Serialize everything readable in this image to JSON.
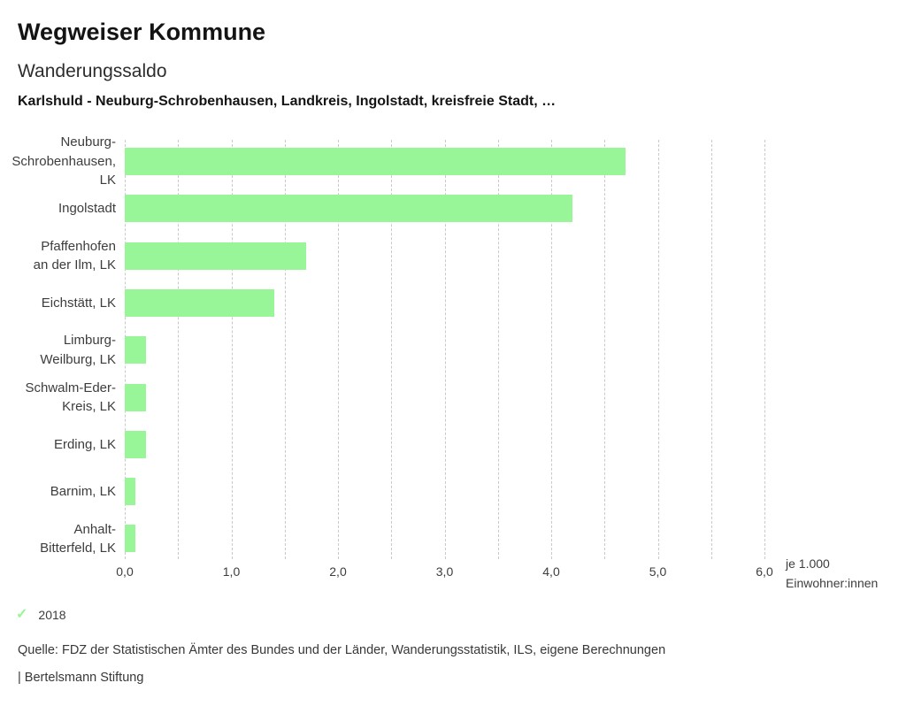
{
  "header": {
    "title": "Wegweiser Kommune",
    "subtitle": "Wanderungssaldo",
    "context": "Karlshuld - Neuburg-Schrobenhausen, Landkreis, Ingolstadt, kreisfreie Stadt, …"
  },
  "chart_data": {
    "type": "bar",
    "orientation": "horizontal",
    "title": "Wanderungssaldo",
    "xlabel": "je 1.000 Einwohner:innen",
    "unit_label_lines": [
      "je 1.000",
      "Einwohner:innen"
    ],
    "categories": [
      "Neuburg-Schrobenhausen, LK",
      "Ingolstadt",
      "Pfaffenhofen an der Ilm, LK",
      "Eichstätt, LK",
      "Limburg-Weilburg, LK",
      "Schwalm-Eder-Kreis, LK",
      "Erding, LK",
      "Barnim, LK",
      "Anhalt-Bitterfeld, LK"
    ],
    "category_label_lines": [
      [
        "Neuburg-",
        "Schrobenhausen,",
        "LK"
      ],
      [
        "Ingolstadt"
      ],
      [
        "Pfaffenhofen",
        "an der Ilm, LK"
      ],
      [
        "Eichstätt, LK"
      ],
      [
        "Limburg-",
        "Weilburg, LK"
      ],
      [
        "Schwalm-Eder-",
        "Kreis, LK"
      ],
      [
        "Erding, LK"
      ],
      [
        "Barnim, LK"
      ],
      [
        "Anhalt-",
        "Bitterfeld, LK"
      ]
    ],
    "values": [
      4.7,
      4.2,
      1.7,
      1.4,
      0.2,
      0.2,
      0.2,
      0.1,
      0.1
    ],
    "series_year": "2018",
    "xlim": [
      0,
      6
    ],
    "gridline_step": 0.5,
    "grid": "dotted-vertical",
    "x_ticks": [
      {
        "value": 0,
        "label": "0,0"
      },
      {
        "value": 1,
        "label": "1,0"
      },
      {
        "value": 2,
        "label": "2,0"
      },
      {
        "value": 3,
        "label": "3,0"
      },
      {
        "value": 4,
        "label": "4,0"
      },
      {
        "value": 5,
        "label": "5,0"
      },
      {
        "value": 6,
        "label": "6,0"
      }
    ],
    "bar_color": "#98f598",
    "legend_position": "bottom-left"
  },
  "legend": {
    "check_icon": "checkmark",
    "check_color": "#98f598",
    "year_label": "2018"
  },
  "footer": {
    "source": "Quelle: FDZ der Statistischen Ämter des Bundes und der Länder, Wanderungsstatistik, ILS, eigene Berechnungen",
    "attribution": "| Bertelsmann Stiftung"
  }
}
